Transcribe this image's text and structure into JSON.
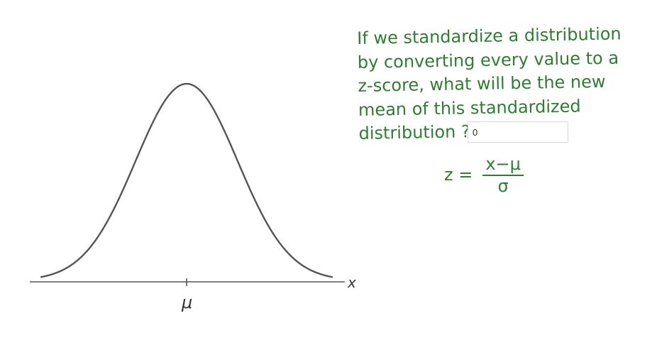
{
  "question": {
    "lines": [
      "If we standardize a distribution",
      "by converting every value to a",
      "z-score, what will be the new",
      "mean of this standardized",
      "distribution ?"
    ]
  },
  "answer": {
    "value": "0"
  },
  "formula": {
    "lhs": "z =",
    "numerator": "x−μ",
    "denominator": "σ"
  },
  "graph": {
    "x_axis_label": "x",
    "mean_label": "μ",
    "curve_color": "#555555",
    "axis_color": "#555555"
  },
  "colors": {
    "handwriting": "#2e7d32"
  }
}
